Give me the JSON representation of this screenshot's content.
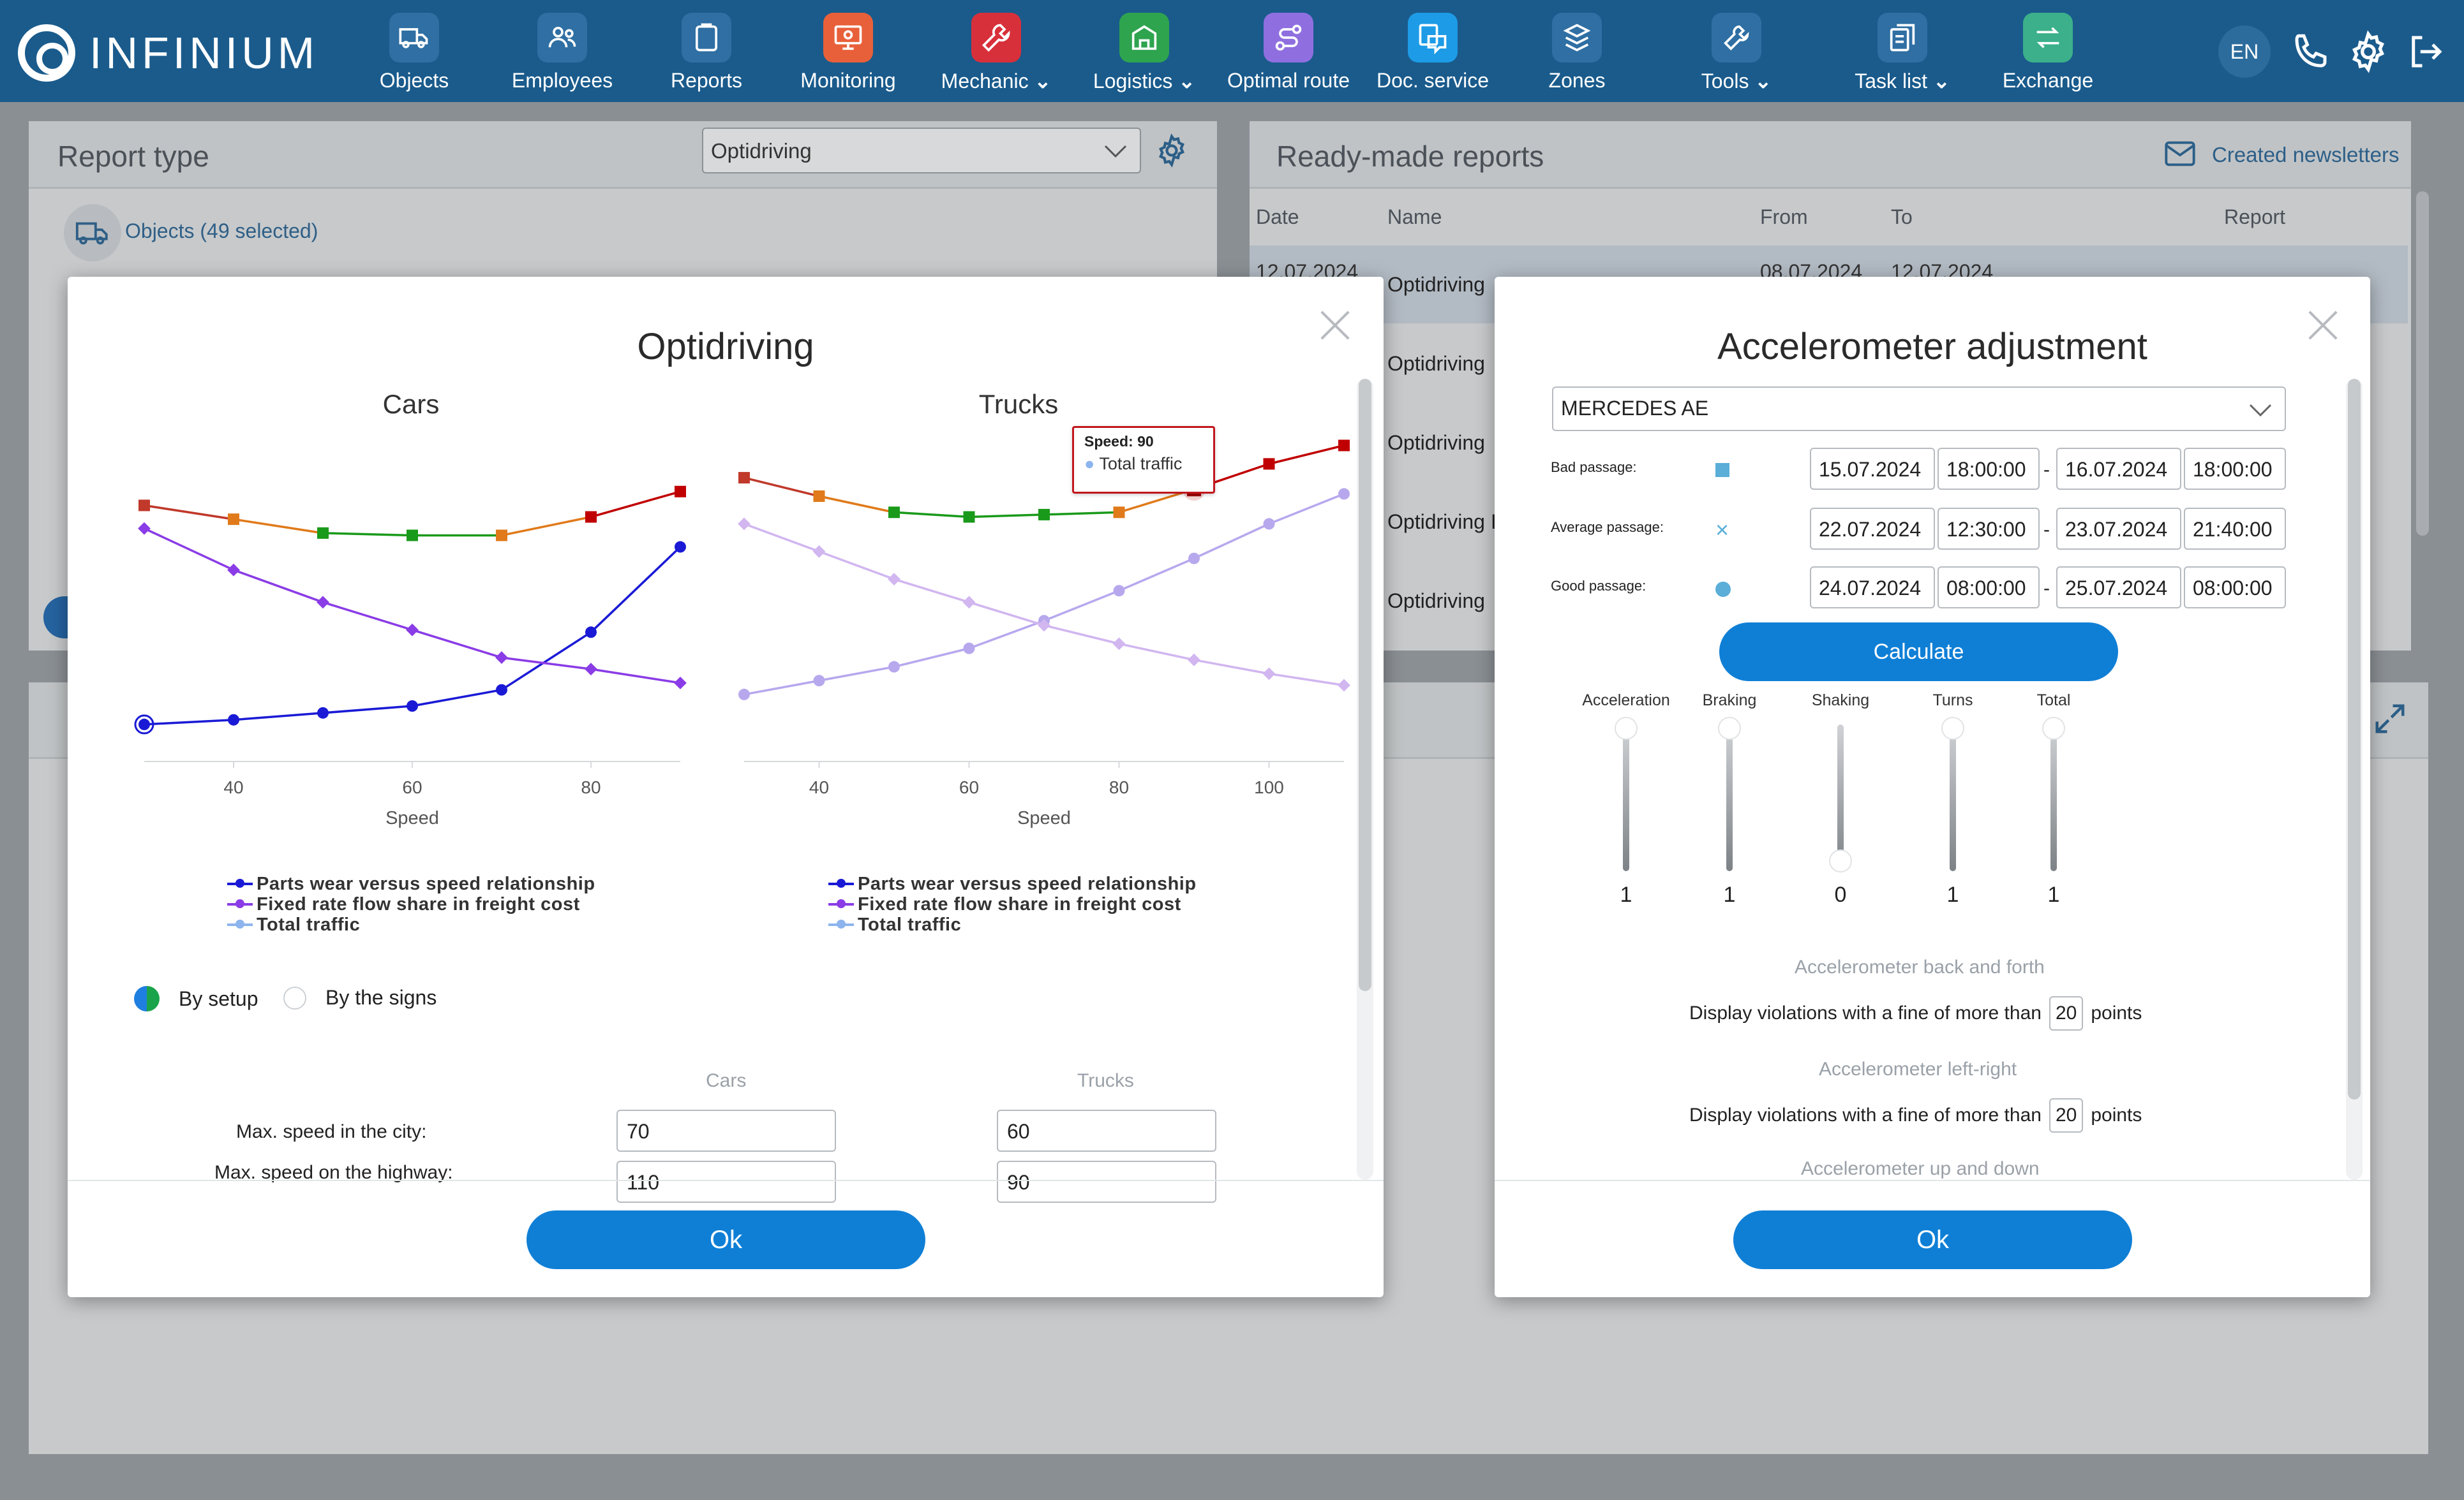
{
  "app": {
    "logo_text": "INFINIUM",
    "lang": "EN"
  },
  "nav": [
    {
      "label": "Objects",
      "icon": "truck-icon",
      "color": "#2f6fa3"
    },
    {
      "label": "Employees",
      "icon": "users-icon",
      "color": "#2f6fa3"
    },
    {
      "label": "Reports",
      "icon": "clipboard-icon",
      "color": "#2f6fa3"
    },
    {
      "label": "Monitoring",
      "icon": "monitor-icon",
      "color": "#e8603a"
    },
    {
      "label": "Mechanic",
      "icon": "wrench-icon",
      "color": "#d8303a"
    },
    {
      "label": "Logistics",
      "icon": "logistics-icon",
      "color": "#2ea44f"
    },
    {
      "label": "Optimal route",
      "icon": "route-icon",
      "color": "#8f6fe0"
    },
    {
      "label": "Doc. service",
      "icon": "doc-chat-icon",
      "color": "#1d9be6"
    },
    {
      "label": "Zones",
      "icon": "zones-icon",
      "color": "#2f6fa3"
    },
    {
      "label": "Tools",
      "icon": "tools-icon",
      "color": "#2f6fa3"
    },
    {
      "label": "Task list",
      "icon": "tasks-icon",
      "color": "#2f6fa3"
    },
    {
      "label": "Exchange",
      "icon": "exchange-icon",
      "color": "#3bb08a"
    }
  ],
  "left_panel": {
    "title": "Report type",
    "select_value": "Optidriving",
    "objects_text": "Objects (49 selected)"
  },
  "right_panel": {
    "title": "Ready-made reports",
    "newsletters": "Created newsletters",
    "columns": [
      "Date",
      "Name",
      "From",
      "To",
      "Report"
    ],
    "rows": [
      {
        "date": "12.07.2024",
        "name": "Optidriving",
        "from": "08.07.2024",
        "to": "12.07.2024"
      },
      {
        "date": "",
        "name": "Optidriving",
        "from": "",
        "to": ""
      },
      {
        "date": "",
        "name": "Optidriving",
        "from": "",
        "to": ""
      },
      {
        "date": "",
        "name": "Optidriving I",
        "from": "",
        "to": ""
      },
      {
        "date": "",
        "name": "Optidriving",
        "from": "",
        "to": ""
      }
    ]
  },
  "optidriving": {
    "title": "Optidriving",
    "cars_title": "Cars",
    "trucks_title": "Trucks",
    "legend": [
      "Parts wear versus speed relationship",
      "Fixed rate flow share in freight cost",
      "Total traffic"
    ],
    "tooltip_title": "Speed: 90",
    "tooltip_series": "Total traffic",
    "mode_setup": "By setup",
    "mode_signs": "By the signs",
    "col_cars": "Cars",
    "col_trucks": "Trucks",
    "rows": [
      {
        "label": "Max. speed in the city:",
        "cars": "70",
        "trucks": "60"
      },
      {
        "label": "Max. speed on the highway:",
        "cars": "110",
        "trucks": "90"
      }
    ],
    "ok": "Ok"
  },
  "chart_data": [
    {
      "type": "line",
      "title": "Cars",
      "xlabel": "Speed",
      "xticks": [
        40,
        60,
        80
      ],
      "xlim": [
        30,
        90
      ],
      "series": [
        {
          "name": "Parts wear versus speed relationship",
          "color": "#1a1ad6",
          "x": [
            30,
            40,
            50,
            60,
            70,
            80,
            90
          ],
          "y": [
            5,
            7,
            10,
            13,
            20,
            45,
            82
          ]
        },
        {
          "name": "Fixed rate flow share in freight cost",
          "color": "#8a3ce6",
          "x": [
            30,
            40,
            50,
            60,
            70,
            80,
            90
          ],
          "y": [
            90,
            72,
            58,
            46,
            34,
            29,
            23
          ]
        },
        {
          "name": "Total traffic",
          "color": "#c00000",
          "x": [
            30,
            40,
            50,
            60,
            70,
            80,
            90
          ],
          "y": [
            100,
            94,
            88,
            87,
            87,
            95,
            106
          ],
          "segment_colors": [
            "#c0392b",
            "#e07a1a",
            "#1a9a1a",
            "#1a9a1a",
            "#e07a1a",
            "#c00000"
          ]
        }
      ]
    },
    {
      "type": "line",
      "title": "Trucks",
      "xlabel": "Speed",
      "xticks": [
        40,
        60,
        80,
        100
      ],
      "xlim": [
        30,
        110
      ],
      "series": [
        {
          "name": "Parts wear versus speed relationship",
          "color": "#b7a8ee",
          "x": [
            30,
            40,
            50,
            60,
            70,
            80,
            90,
            100,
            110
          ],
          "y": [
            18,
            24,
            30,
            38,
            50,
            63,
            77,
            92,
            105
          ]
        },
        {
          "name": "Fixed rate flow share in freight cost",
          "color": "#d1b6f0",
          "x": [
            30,
            40,
            50,
            60,
            70,
            80,
            90,
            100,
            110
          ],
          "y": [
            92,
            80,
            68,
            58,
            48,
            40,
            33,
            27,
            22
          ]
        },
        {
          "name": "Total traffic",
          "color": "#c00000",
          "x": [
            30,
            40,
            50,
            60,
            70,
            80,
            90,
            100,
            110
          ],
          "y": [
            112,
            104,
            97,
            95,
            96,
            97,
            107,
            118,
            126
          ],
          "segment_colors": [
            "#c0392b",
            "#e07a1a",
            "#1a9a1a",
            "#1a9a1a",
            "#1a9a1a",
            "#e07a1a",
            "#c00000",
            "#c00000"
          ]
        }
      ]
    }
  ],
  "accelerometer": {
    "title": "Accelerometer adjustment",
    "vehicle": "MERCEDES AE",
    "rows": [
      {
        "label": "Bad passage:",
        "marker": "square",
        "from_date": "15.07.2024",
        "from_time": "18:00:00",
        "to_date": "16.07.2024",
        "to_time": "18:00:00"
      },
      {
        "label": "Average passage:",
        "marker": "cross",
        "from_date": "22.07.2024",
        "from_time": "12:30:00",
        "to_date": "23.07.2024",
        "to_time": "21:40:00"
      },
      {
        "label": "Good passage:",
        "marker": "circle",
        "from_date": "24.07.2024",
        "from_time": "08:00:00",
        "to_date": "25.07.2024",
        "to_time": "08:00:00"
      }
    ],
    "separator": "-",
    "calculate": "Calculate",
    "sliders": [
      {
        "label": "Acceleration",
        "value": "1"
      },
      {
        "label": "Braking",
        "value": "1"
      },
      {
        "label": "Shaking",
        "value": "0"
      },
      {
        "label": "Turns",
        "value": "1"
      },
      {
        "label": "Total",
        "value": "1"
      }
    ],
    "sections": [
      "Accelerometer back and forth",
      "Accelerometer left-right",
      "Accelerometer up and down"
    ],
    "violation_prefix": "Display violations with a fine of more than",
    "violation_suffix": "points",
    "fine_back_forth": "20",
    "fine_left_right": "20",
    "ok": "Ok"
  }
}
